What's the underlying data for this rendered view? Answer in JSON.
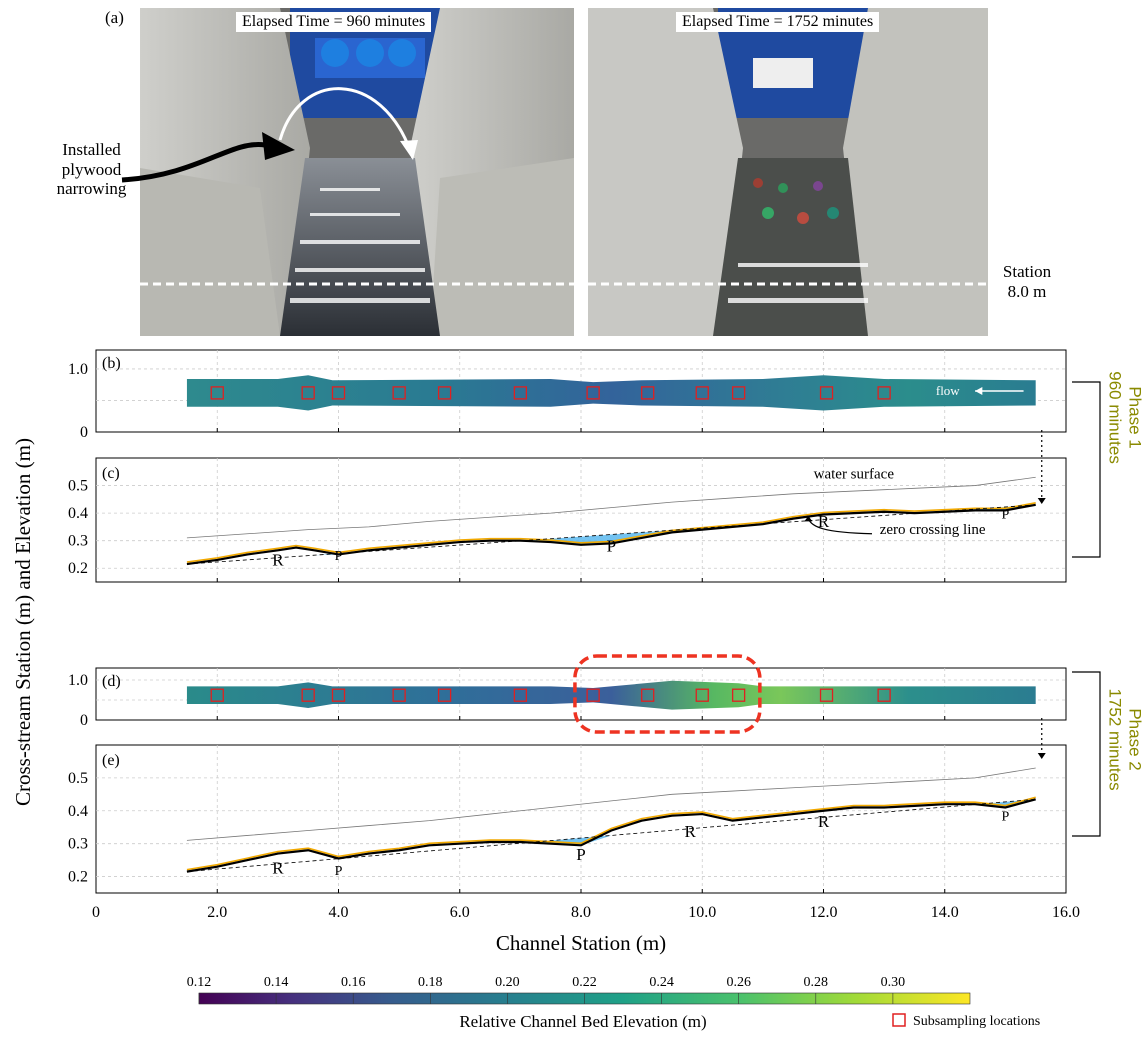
{
  "panel_a": {
    "letter": "(a)",
    "left_time": "Elapsed Time = 960 minutes",
    "right_time": "Elapsed Time = 1752 minutes",
    "annotation": "Installed plywood narrowing",
    "station_label": "Station 8.0 m"
  },
  "phases": [
    {
      "label": "Phase 1",
      "duration": "960 minutes"
    },
    {
      "label": "Phase 2",
      "duration": "1752 minutes"
    }
  ],
  "colors": {
    "water_fill": "#5bb8ee",
    "zero_line": "#000000",
    "orange_line": "#f2a900",
    "subsample_box": "#e02020",
    "highlight_box": "#ee3322",
    "phase_text": "#8a8a00"
  },
  "chart_data": [
    {
      "type": "heatmap",
      "panel": "(b)",
      "subsampling_x": [
        2.0,
        3.5,
        4.0,
        5.0,
        5.75,
        7.0,
        8.2,
        9.1,
        10.0,
        10.6,
        12.05,
        13.0
      ],
      "annotation": "flow",
      "ylim": [
        0,
        1.3
      ],
      "yticks": [
        "1.0",
        "0"
      ]
    },
    {
      "type": "line",
      "panel": "(c)",
      "x_range": [
        1.5,
        15.5
      ],
      "ylim": [
        0.15,
        0.6
      ],
      "yticks": [
        "0.5",
        "0.4",
        "0.3",
        "0.2"
      ],
      "series": [
        {
          "name": "water surface",
          "x": [
            1.5,
            2.5,
            3.5,
            4.5,
            5.5,
            6.5,
            7.5,
            8.5,
            9.5,
            10.5,
            11.5,
            12.5,
            13.5,
            14.5,
            15.5
          ],
          "y": [
            0.31,
            0.325,
            0.34,
            0.35,
            0.37,
            0.385,
            0.4,
            0.42,
            0.44,
            0.455,
            0.47,
            0.48,
            0.49,
            0.5,
            0.53
          ]
        },
        {
          "x": [
            1.5,
            2.0,
            2.5,
            3.0,
            3.3,
            3.6,
            4.0,
            4.5,
            5.0,
            5.5,
            6.0,
            6.5,
            7.0,
            7.5,
            8.0,
            8.5,
            9.0,
            9.5,
            10.0,
            10.5,
            11.0,
            11.5,
            12.0,
            12.5,
            13.0,
            13.5,
            14.0,
            14.5,
            15.0,
            15.5
          ],
          "y": [
            0.215,
            0.23,
            0.25,
            0.265,
            0.275,
            0.265,
            0.25,
            0.265,
            0.275,
            0.285,
            0.295,
            0.3,
            0.3,
            0.295,
            0.285,
            0.29,
            0.31,
            0.33,
            0.34,
            0.35,
            0.36,
            0.38,
            0.395,
            0.4,
            0.405,
            0.4,
            0.405,
            0.41,
            0.41,
            0.43
          ]
        },
        {
          "name": "zero crossing line",
          "x": [
            1.5,
            15.5
          ],
          "y": [
            0.215,
            0.43
          ]
        }
      ],
      "labels": [
        {
          "text": "R",
          "x": 3.0,
          "y": 0.21
        },
        {
          "text": "P",
          "x": 4.0,
          "y": 0.23
        },
        {
          "text": "P",
          "x": 8.5,
          "y": 0.26
        },
        {
          "text": "R",
          "x": 12.0,
          "y": 0.35
        },
        {
          "text": "P",
          "x": 15.0,
          "y": 0.38
        }
      ]
    },
    {
      "type": "heatmap",
      "panel": "(d)",
      "subsampling_x": [
        2.0,
        3.5,
        4.0,
        5.0,
        5.75,
        7.0,
        8.2,
        9.1,
        10.0,
        10.6,
        12.05,
        13.0
      ],
      "ylim": [
        0,
        1.3
      ],
      "yticks": [
        "1.0",
        "0"
      ]
    },
    {
      "type": "line",
      "panel": "(e)",
      "x_range": [
        1.5,
        15.5
      ],
      "ylim": [
        0.15,
        0.6
      ],
      "yticks": [
        "0.5",
        "0.4",
        "0.3",
        "0.2"
      ],
      "series": [
        {
          "x": [
            1.5,
            2.5,
            3.5,
            4.5,
            5.5,
            6.5,
            7.5,
            8.5,
            9.5,
            10.5,
            11.5,
            12.5,
            13.5,
            14.5,
            15.5
          ],
          "y": [
            0.31,
            0.325,
            0.34,
            0.355,
            0.37,
            0.39,
            0.41,
            0.43,
            0.45,
            0.46,
            0.47,
            0.48,
            0.49,
            0.5,
            0.53
          ]
        },
        {
          "x": [
            1.5,
            2.0,
            2.5,
            3.0,
            3.5,
            3.8,
            4.0,
            4.5,
            5.0,
            5.5,
            6.0,
            6.5,
            7.0,
            7.5,
            8.0,
            8.5,
            9.0,
            9.5,
            10.0,
            10.5,
            11.0,
            11.5,
            12.0,
            12.5,
            13.0,
            13.5,
            14.0,
            14.5,
            15.0,
            15.5
          ],
          "y": [
            0.215,
            0.23,
            0.25,
            0.27,
            0.28,
            0.265,
            0.255,
            0.27,
            0.28,
            0.295,
            0.3,
            0.305,
            0.305,
            0.3,
            0.295,
            0.34,
            0.37,
            0.385,
            0.39,
            0.37,
            0.38,
            0.39,
            0.4,
            0.41,
            0.41,
            0.415,
            0.42,
            0.42,
            0.41,
            0.435
          ]
        },
        {
          "x": [
            1.5,
            15.5
          ],
          "y": [
            0.215,
            0.435
          ]
        }
      ],
      "labels": [
        {
          "text": "R",
          "x": 3.0,
          "y": 0.21
        },
        {
          "text": "P",
          "x": 4.0,
          "y": 0.205
        },
        {
          "text": "P",
          "x": 8.0,
          "y": 0.25
        },
        {
          "text": "R",
          "x": 9.8,
          "y": 0.32
        },
        {
          "text": "R",
          "x": 12.0,
          "y": 0.35
        },
        {
          "text": "P",
          "x": 15.0,
          "y": 0.37
        }
      ]
    }
  ],
  "x_axis": {
    "label": "Channel Station (m)",
    "ticks": [
      "0",
      "2.0",
      "4.0",
      "6.0",
      "8.0",
      "10.0",
      "12.0",
      "14.0",
      "16.0"
    ],
    "range": [
      0,
      16
    ]
  },
  "y_axis_label": "Cross-stream Station (m) and Elevation (m)",
  "colorbar": {
    "label": "Relative Channel Bed Elevation (m)",
    "ticks": [
      "0.12",
      "0.14",
      "0.16",
      "0.18",
      "0.20",
      "0.22",
      "0.24",
      "0.26",
      "0.28",
      "0.30"
    ],
    "range": [
      0.12,
      0.32
    ]
  },
  "legend": {
    "subsampling": "Subsampling locations"
  }
}
